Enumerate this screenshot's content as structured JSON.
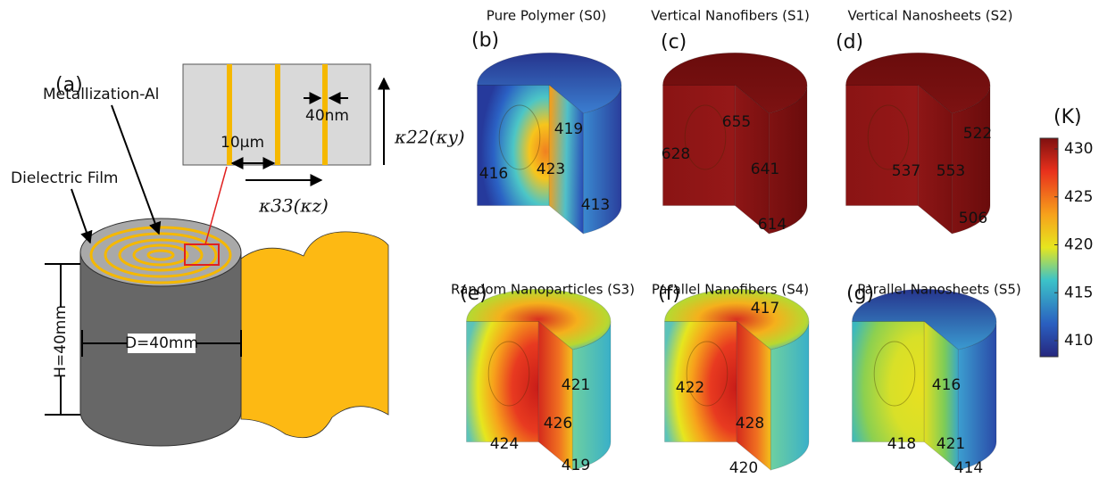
{
  "panel_a": {
    "label": "(a)",
    "metallization": "Metallization-Al",
    "dielectric": "Dielectric Film",
    "spacing": "10μm",
    "thickness": "40nm",
    "kappa_y": "κ22(κy)",
    "kappa_z": "κ33(κz)",
    "height": "H=40mm",
    "diameter": "D=40mm"
  },
  "panels": [
    {
      "letter": "(b)",
      "title": "Pure Polymer (S0)",
      "temperatures": [
        419,
        423,
        416,
        413
      ]
    },
    {
      "letter": "(c)",
      "title": "Vertical Nanofibers (S1)",
      "temperatures": [
        655,
        628,
        641,
        614
      ]
    },
    {
      "letter": "(d)",
      "title": "Vertical Nanosheets (S2)",
      "temperatures": [
        522,
        537,
        553,
        506
      ]
    },
    {
      "letter": "(e)",
      "title": "Random Nanoparticles (S3)",
      "temperatures": [
        421,
        426,
        424,
        419
      ]
    },
    {
      "letter": "(f)",
      "title": "Parallel Nanofibers (S4)",
      "temperatures": [
        417,
        422,
        428,
        420
      ]
    },
    {
      "letter": "(g)",
      "title": "Parallel Nanosheets (S5)",
      "temperatures": [
        416,
        418,
        421,
        414
      ]
    }
  ],
  "colorbar": {
    "unit": "(K)",
    "ticks": [
      430,
      425,
      420,
      415,
      410
    ]
  }
}
